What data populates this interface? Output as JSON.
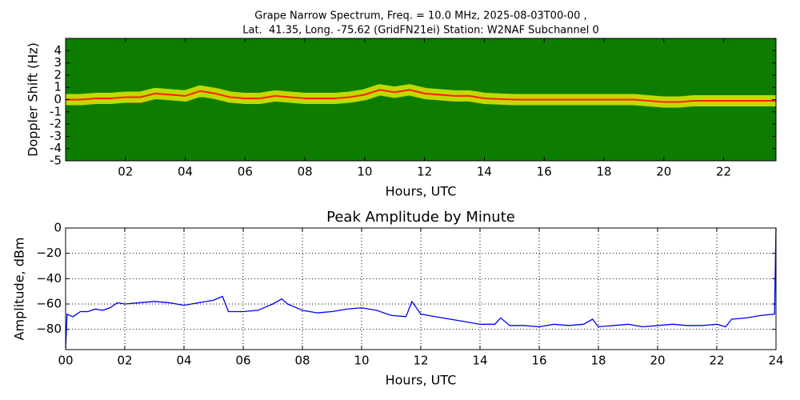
{
  "chart_data": [
    {
      "type": "spectrogram",
      "title": [
        "Grape Narrow Spectrum, Freq. = 10.0 MHz, 2025-08-03T00-00 ,",
        "Lat.  41.35, Long. -75.62 (GridFN21ei) Station: W2NAF Subchannel 0"
      ],
      "xlabel": "Hours, UTC",
      "ylabel": "Doppler Shift (Hz)",
      "x": [
        0,
        0.5,
        1,
        1.5,
        2,
        2.5,
        3,
        3.5,
        4,
        4.5,
        5,
        5.5,
        6,
        6.5,
        7,
        7.5,
        8,
        8.5,
        9,
        9.5,
        10,
        10.5,
        11,
        11.5,
        12,
        12.5,
        13,
        13.5,
        14,
        15,
        16,
        17,
        18,
        19,
        20,
        20.5,
        21,
        22,
        23,
        23.75
      ],
      "values": [
        0,
        0,
        0.1,
        0.1,
        0.2,
        0.2,
        0.5,
        0.4,
        0.3,
        0.7,
        0.5,
        0.2,
        0.1,
        0.1,
        0.3,
        0.2,
        0.1,
        0.1,
        0.1,
        0.2,
        0.4,
        0.8,
        0.6,
        0.8,
        0.5,
        0.4,
        0.3,
        0.3,
        0.1,
        0,
        0,
        0,
        0,
        0,
        -0.2,
        -0.2,
        -0.1,
        -0.1,
        -0.1,
        -0.1
      ],
      "colors": [
        "#0d7d00",
        "#f0f000",
        "#ff2000"
      ],
      "xlim": [
        0,
        23.75
      ],
      "ylim": [
        -5,
        5
      ],
      "xticks": [
        {
          "value": 2,
          "label": "02"
        },
        {
          "value": 4,
          "label": "04"
        },
        {
          "value": 6,
          "label": "06"
        },
        {
          "value": 8,
          "label": "08"
        },
        {
          "value": 10,
          "label": "10"
        },
        {
          "value": 12,
          "label": "12"
        },
        {
          "value": 14,
          "label": "14"
        },
        {
          "value": 16,
          "label": "16"
        },
        {
          "value": 18,
          "label": "18"
        },
        {
          "value": 20,
          "label": "20"
        },
        {
          "value": 22,
          "label": "22"
        }
      ],
      "yticks": [
        4,
        3,
        2,
        1,
        0,
        -1,
        -2,
        -3,
        -4,
        -5
      ]
    },
    {
      "type": "line",
      "title": "Peak Amplitude by Minute",
      "xlabel": "Hours, UTC",
      "ylabel": "Amplitude, dBm",
      "color": "#0000ff",
      "grid": true,
      "x": [
        0,
        0.05,
        0.25,
        0.5,
        0.75,
        1,
        1.25,
        1.5,
        1.75,
        2,
        2.5,
        3,
        3.5,
        4,
        4.5,
        5,
        5.3,
        5.5,
        6,
        6.5,
        7,
        7.3,
        7.5,
        8,
        8.5,
        9,
        9.5,
        10,
        10.5,
        11,
        11.5,
        11.7,
        12,
        12.5,
        13,
        13.5,
        14,
        14.5,
        14.7,
        15,
        15.5,
        16,
        16.5,
        17,
        17.5,
        17.8,
        18,
        18.5,
        19,
        19.5,
        20,
        20.5,
        21,
        21.5,
        22,
        22.3,
        22.5,
        23,
        23.5,
        23.95,
        24
      ],
      "values": [
        -95,
        -68,
        -70,
        -66,
        -66,
        -64,
        -65,
        -63,
        -59,
        -60,
        -59,
        -58,
        -59,
        -61,
        -59,
        -57,
        -54,
        -66,
        -66,
        -65,
        -60,
        -56,
        -60,
        -65,
        -67,
        -66,
        -64,
        -63,
        -65,
        -69,
        -70,
        -58,
        -68,
        -70,
        -72,
        -74,
        -76,
        -76,
        -71,
        -77,
        -77,
        -78,
        -76,
        -77,
        -76,
        -72,
        -78,
        -77,
        -76,
        -78,
        -77,
        -76,
        -77,
        -77,
        -76,
        -78,
        -72,
        -71,
        -69,
        -68,
        0
      ],
      "xlim": [
        0,
        24
      ],
      "ylim": [
        -96,
        0
      ],
      "xticks": [
        {
          "value": 0,
          "label": "00"
        },
        {
          "value": 2,
          "label": "02"
        },
        {
          "value": 4,
          "label": "04"
        },
        {
          "value": 6,
          "label": "06"
        },
        {
          "value": 8,
          "label": "08"
        },
        {
          "value": 10,
          "label": "10"
        },
        {
          "value": 12,
          "label": "12"
        },
        {
          "value": 14,
          "label": "14"
        },
        {
          "value": 16,
          "label": "16"
        },
        {
          "value": 18,
          "label": "18"
        },
        {
          "value": 20,
          "label": "20"
        },
        {
          "value": 22,
          "label": "22"
        },
        {
          "value": 24,
          "label": "24"
        }
      ],
      "yticks": [
        0,
        {
          "value": -20,
          "label": "−20"
        },
        {
          "value": -40,
          "label": "−40"
        },
        {
          "value": -60,
          "label": "−60"
        },
        {
          "value": -80,
          "label": "−80"
        }
      ]
    }
  ]
}
